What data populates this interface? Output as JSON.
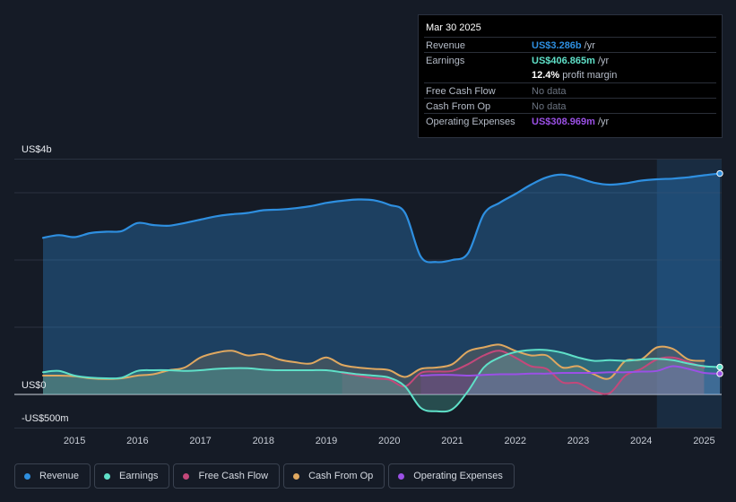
{
  "tooltip": {
    "date": "Mar 30 2025",
    "revenue_label": "Revenue",
    "revenue_value": "US$3.286b",
    "revenue_unit": "/yr",
    "earnings_label": "Earnings",
    "earnings_value": "US$406.865m",
    "earnings_unit": "/yr",
    "margin_value": "12.4%",
    "margin_text": "profit margin",
    "fcf_label": "Free Cash Flow",
    "fcf_value": "No data",
    "cfo_label": "Cash From Op",
    "cfo_value": "No data",
    "opex_label": "Operating Expenses",
    "opex_value": "US$308.969m",
    "opex_unit": "/yr"
  },
  "legend": [
    {
      "label": "Revenue",
      "color": "#2e8fe0"
    },
    {
      "label": "Earnings",
      "color": "#5fe0c8"
    },
    {
      "label": "Free Cash Flow",
      "color": "#c4487a"
    },
    {
      "label": "Cash From Op",
      "color": "#e0a860"
    },
    {
      "label": "Operating Expenses",
      "color": "#9b50e6"
    }
  ],
  "colors": {
    "revenue": "#2e8fe0",
    "earnings": "#5fe0c8",
    "fcf": "#c4487a",
    "cfo": "#e0a860",
    "opex": "#9b50e6",
    "revenue_value": "#2e8fe0",
    "earnings_value": "#5fe0c8",
    "opex_value": "#9b50e6"
  },
  "chart_data": {
    "type": "line",
    "title": "",
    "xlabel": "",
    "ylabel": "",
    "y_top_label": "US$4b",
    "y_zero_label": "US$0",
    "y_bottom_label": "-US$500m",
    "ylim": [
      -0.5,
      3.5
    ],
    "xlim": [
      2014.5,
      2025.25
    ],
    "x_ticks": [
      2015,
      2016,
      2017,
      2018,
      2019,
      2020,
      2021,
      2022,
      2023,
      2024,
      2025
    ],
    "x_tick_labels": [
      "2015",
      "2016",
      "2017",
      "2018",
      "2019",
      "2020",
      "2021",
      "2022",
      "2023",
      "2024",
      "2025"
    ],
    "forecast_start": 2024.25,
    "series": [
      {
        "key": "revenue",
        "name": "Revenue",
        "x": [
          2014.5,
          2014.75,
          2015.0,
          2015.25,
          2015.5,
          2015.75,
          2016.0,
          2016.25,
          2016.5,
          2016.75,
          2017.0,
          2017.25,
          2017.5,
          2017.75,
          2018.0,
          2018.25,
          2018.5,
          2018.75,
          2019.0,
          2019.25,
          2019.5,
          2019.75,
          2020.0,
          2020.25,
          2020.5,
          2020.75,
          2021.0,
          2021.25,
          2021.5,
          2021.75,
          2022.0,
          2022.25,
          2022.5,
          2022.75,
          2023.0,
          2023.25,
          2023.5,
          2023.75,
          2024.0,
          2024.25,
          2024.5,
          2024.75,
          2025.0,
          2025.25
        ],
        "values": [
          2.33,
          2.37,
          2.34,
          2.4,
          2.42,
          2.43,
          2.55,
          2.52,
          2.51,
          2.55,
          2.6,
          2.65,
          2.68,
          2.7,
          2.74,
          2.75,
          2.77,
          2.8,
          2.85,
          2.88,
          2.9,
          2.89,
          2.82,
          2.7,
          2.05,
          1.97,
          2.0,
          2.1,
          2.68,
          2.85,
          2.98,
          3.12,
          3.23,
          3.27,
          3.22,
          3.15,
          3.12,
          3.14,
          3.18,
          3.2,
          3.21,
          3.23,
          3.26,
          3.286
        ]
      },
      {
        "key": "earnings",
        "name": "Earnings",
        "x": [
          2014.5,
          2014.75,
          2015.0,
          2015.25,
          2015.5,
          2015.75,
          2016.0,
          2016.25,
          2016.5,
          2016.75,
          2017.0,
          2017.25,
          2017.5,
          2017.75,
          2018.0,
          2018.25,
          2018.5,
          2018.75,
          2019.0,
          2019.25,
          2019.5,
          2019.75,
          2020.0,
          2020.25,
          2020.5,
          2020.75,
          2021.0,
          2021.25,
          2021.5,
          2021.75,
          2022.0,
          2022.25,
          2022.5,
          2022.75,
          2023.0,
          2023.25,
          2023.5,
          2023.75,
          2024.0,
          2024.25,
          2024.5,
          2024.75,
          2025.0,
          2025.25
        ],
        "values": [
          0.33,
          0.35,
          0.28,
          0.25,
          0.24,
          0.25,
          0.35,
          0.36,
          0.36,
          0.35,
          0.36,
          0.38,
          0.39,
          0.39,
          0.37,
          0.36,
          0.36,
          0.36,
          0.36,
          0.33,
          0.3,
          0.28,
          0.25,
          0.12,
          -0.2,
          -0.25,
          -0.22,
          0.05,
          0.4,
          0.55,
          0.63,
          0.66,
          0.66,
          0.62,
          0.55,
          0.5,
          0.51,
          0.5,
          0.52,
          0.53,
          0.51,
          0.46,
          0.42,
          0.407
        ]
      },
      {
        "key": "fcf",
        "name": "Free Cash Flow",
        "x": [
          2019.25,
          2019.5,
          2019.75,
          2020.0,
          2020.25,
          2020.5,
          2020.75,
          2021.0,
          2021.25,
          2021.5,
          2021.75,
          2022.0,
          2022.25,
          2022.5,
          2022.75,
          2023.0,
          2023.25,
          2023.5,
          2023.75,
          2024.0,
          2024.25,
          2024.5,
          2024.75,
          2025.0
        ],
        "values": [
          0.32,
          0.28,
          0.24,
          0.22,
          0.12,
          0.32,
          0.34,
          0.35,
          0.45,
          0.58,
          0.65,
          0.55,
          0.42,
          0.38,
          0.18,
          0.17,
          0.05,
          0.02,
          0.28,
          0.38,
          0.52,
          0.55,
          0.48,
          0.4
        ]
      },
      {
        "key": "cfo",
        "name": "Cash From Op",
        "x": [
          2014.5,
          2014.75,
          2015.0,
          2015.25,
          2015.5,
          2015.75,
          2016.0,
          2016.25,
          2016.5,
          2016.75,
          2017.0,
          2017.25,
          2017.5,
          2017.75,
          2018.0,
          2018.25,
          2018.5,
          2018.75,
          2019.0,
          2019.25,
          2019.5,
          2019.75,
          2020.0,
          2020.25,
          2020.5,
          2020.75,
          2021.0,
          2021.25,
          2021.5,
          2021.75,
          2022.0,
          2022.25,
          2022.5,
          2022.75,
          2023.0,
          2023.25,
          2023.5,
          2023.75,
          2024.0,
          2024.25,
          2024.5,
          2024.75,
          2025.0
        ],
        "values": [
          0.28,
          0.28,
          0.27,
          0.24,
          0.23,
          0.24,
          0.28,
          0.3,
          0.36,
          0.4,
          0.55,
          0.62,
          0.65,
          0.58,
          0.6,
          0.52,
          0.48,
          0.46,
          0.55,
          0.44,
          0.4,
          0.38,
          0.36,
          0.26,
          0.38,
          0.4,
          0.45,
          0.64,
          0.7,
          0.74,
          0.65,
          0.58,
          0.58,
          0.4,
          0.42,
          0.3,
          0.24,
          0.5,
          0.52,
          0.7,
          0.68,
          0.52,
          0.5
        ]
      },
      {
        "key": "opex",
        "name": "Operating Expenses",
        "x": [
          2020.5,
          2020.75,
          2021.0,
          2021.25,
          2021.5,
          2021.75,
          2022.0,
          2022.25,
          2022.5,
          2022.75,
          2023.0,
          2023.25,
          2023.5,
          2023.75,
          2024.0,
          2024.25,
          2024.5,
          2024.75,
          2025.0,
          2025.25
        ],
        "values": [
          0.28,
          0.29,
          0.29,
          0.28,
          0.29,
          0.3,
          0.3,
          0.31,
          0.31,
          0.32,
          0.32,
          0.32,
          0.33,
          0.33,
          0.34,
          0.35,
          0.42,
          0.38,
          0.32,
          0.309
        ]
      }
    ]
  }
}
